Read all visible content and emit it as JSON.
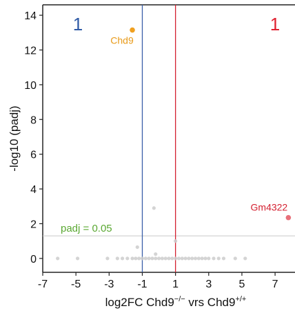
{
  "chart_data": {
    "type": "scatter",
    "xlabel_main": "log2FC Chd9",
    "xlabel_sup1": "−/−",
    "xlabel_mid": " vrs Chd9",
    "xlabel_sup2": "+/+",
    "ylabel": "-log10 (padj)",
    "xlim": [
      -7,
      8.2
    ],
    "ylim": [
      -0.8,
      14.6
    ],
    "x_ticks": [
      -7,
      -5,
      -3,
      -1,
      1,
      3,
      5,
      7
    ],
    "x_tick_labels": [
      "-7",
      "-5",
      "-3",
      "-1",
      "1",
      "3",
      "5",
      "7"
    ],
    "y_ticks": [
      0,
      2,
      4,
      6,
      8,
      10,
      12,
      14
    ],
    "y_tick_labels": [
      "0",
      "2",
      "4",
      "6",
      "8",
      "10",
      "12",
      "14"
    ],
    "grid": false,
    "fc_thresholds": [
      {
        "x": -1,
        "color": "#3a5fa8"
      },
      {
        "x": 1,
        "color": "#d42030"
      }
    ],
    "padj_threshold": {
      "y": 1.3,
      "label": "padj = 0.05",
      "color": "#5aa832",
      "line_color": "#c8c8c8"
    },
    "counts": {
      "down": {
        "label": "1",
        "color": "#2f5aa6"
      },
      "up": {
        "label": "1",
        "color": "#e02030"
      }
    },
    "highlighted": [
      {
        "gene": "Chd9",
        "x": -1.6,
        "y": 13.15,
        "color": "#f0a020"
      },
      {
        "gene": "Gm4322",
        "x": 7.8,
        "y": 2.35,
        "color": "#e8707a"
      }
    ],
    "background_points": {
      "color": "#cccccc",
      "points": [
        [
          -0.3,
          2.9
        ],
        [
          -1.3,
          0.65
        ],
        [
          1.0,
          1.0
        ],
        [
          -0.2,
          0.25
        ],
        [
          -6.1,
          0
        ],
        [
          -4.9,
          0
        ],
        [
          -3.1,
          0
        ],
        [
          -2.5,
          0
        ],
        [
          -2.2,
          0
        ],
        [
          -1.9,
          0
        ],
        [
          -1.6,
          0
        ],
        [
          -1.4,
          0
        ],
        [
          -1.2,
          0
        ],
        [
          -1.0,
          0
        ],
        [
          -0.8,
          0
        ],
        [
          -0.6,
          0
        ],
        [
          -0.4,
          0
        ],
        [
          -0.2,
          0
        ],
        [
          0,
          0
        ],
        [
          0.2,
          0
        ],
        [
          0.4,
          0
        ],
        [
          0.6,
          0
        ],
        [
          0.8,
          0
        ],
        [
          1.0,
          0
        ],
        [
          1.2,
          0
        ],
        [
          1.4,
          0
        ],
        [
          1.6,
          0
        ],
        [
          1.8,
          0
        ],
        [
          2.0,
          0
        ],
        [
          2.2,
          0
        ],
        [
          2.4,
          0
        ],
        [
          2.6,
          0
        ],
        [
          2.8,
          0
        ],
        [
          3.0,
          0
        ],
        [
          3.3,
          0
        ],
        [
          3.6,
          0
        ],
        [
          3.9,
          0
        ],
        [
          4.6,
          0
        ],
        [
          5.2,
          0
        ]
      ]
    }
  }
}
